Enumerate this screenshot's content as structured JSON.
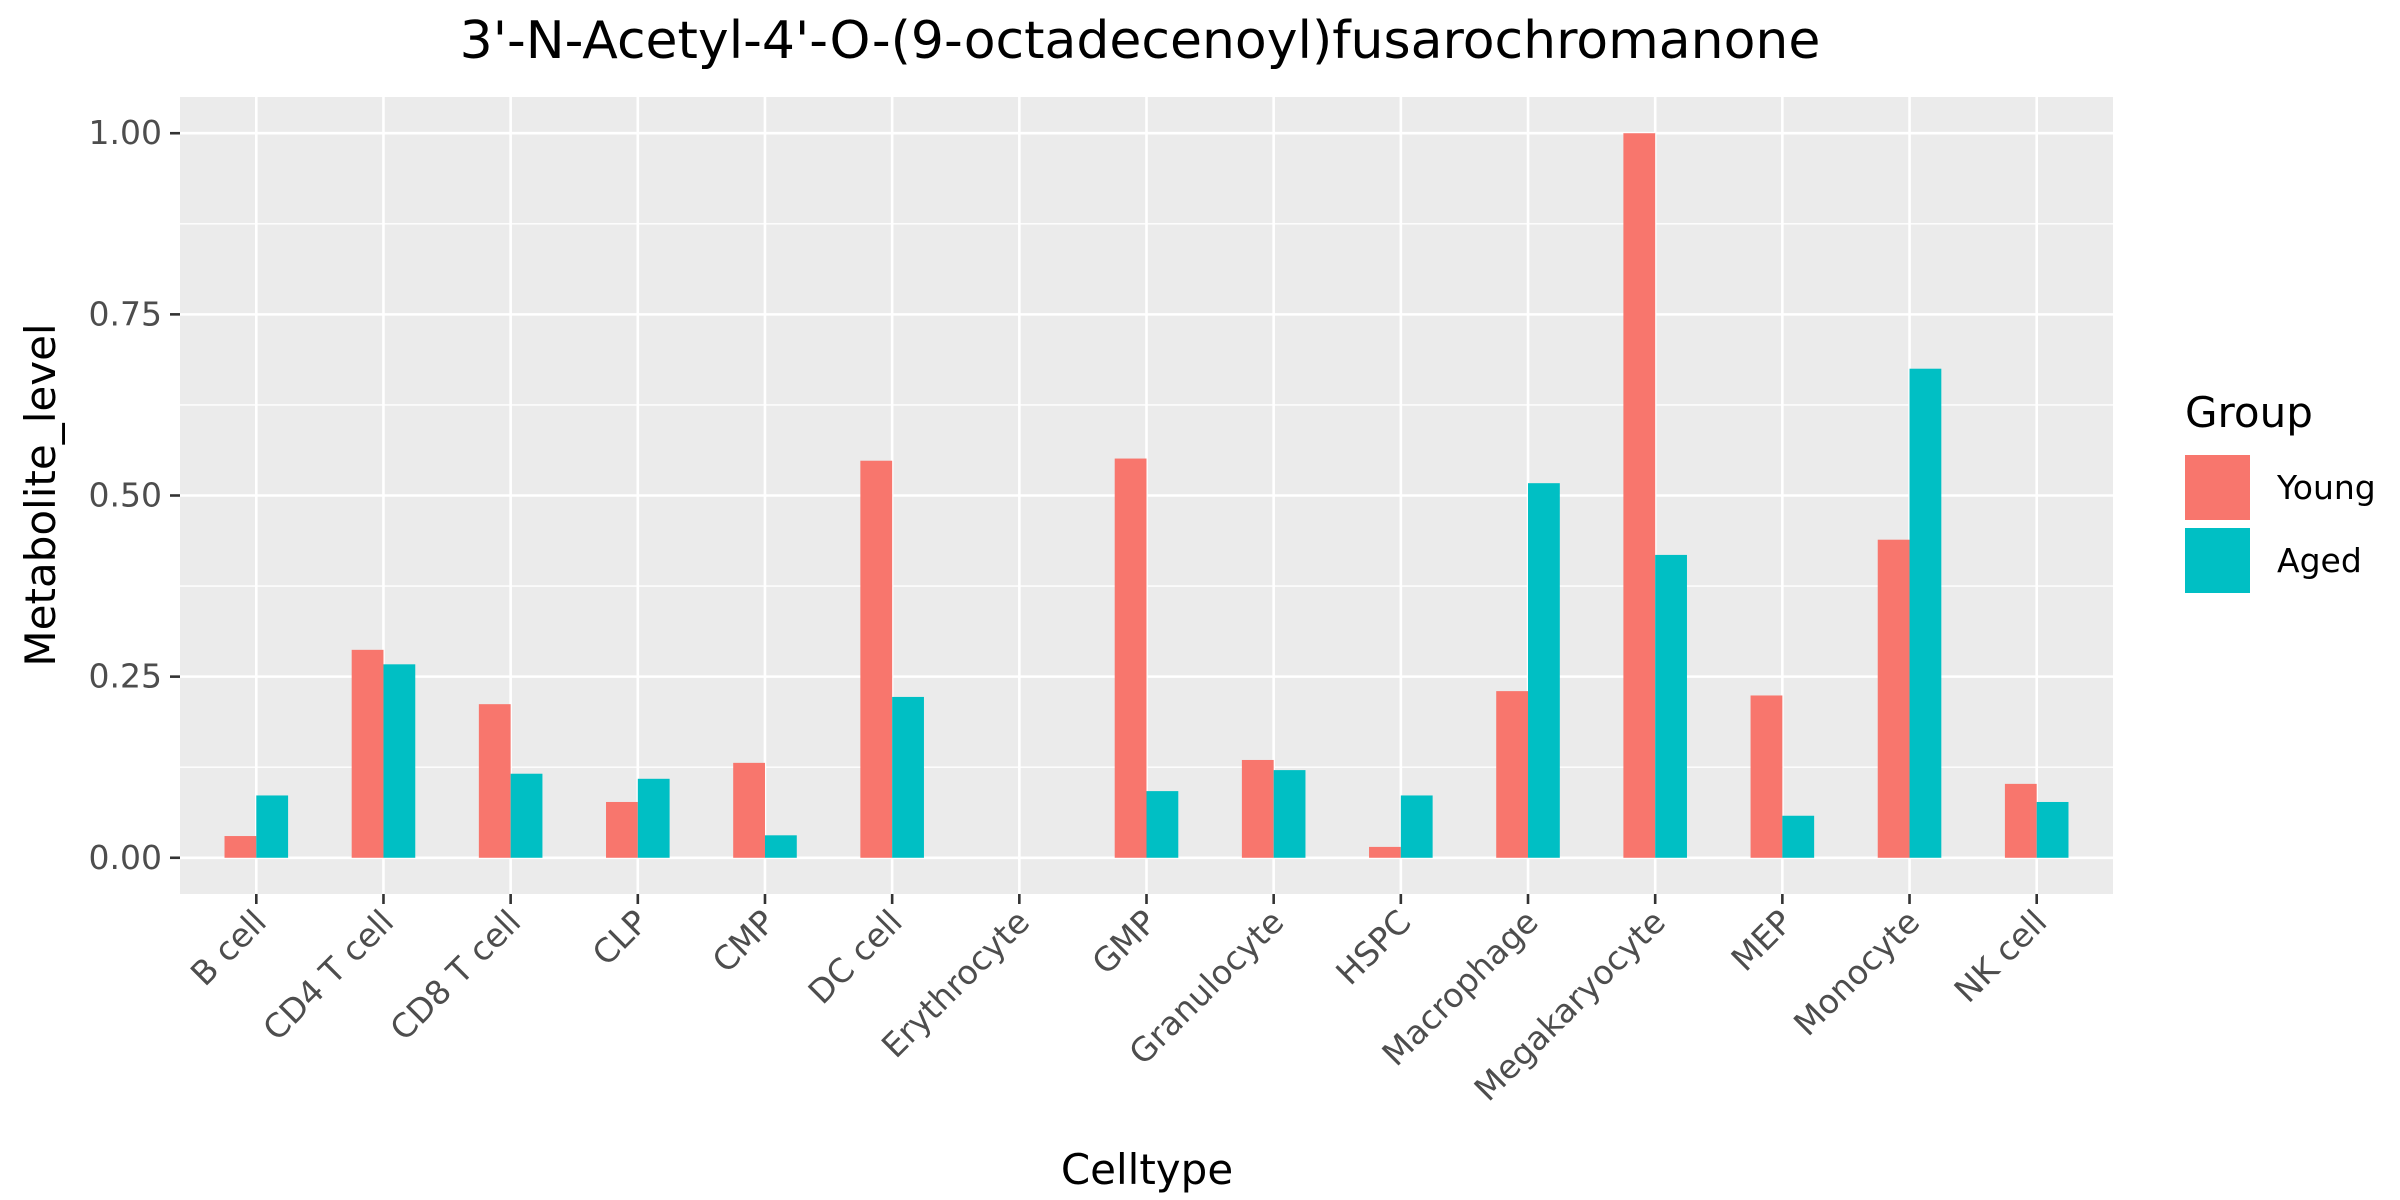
{
  "chart_data": {
    "type": "bar",
    "title": "3'-N-Acetyl-4'-O-(9-octadecenoyl)fusarochromanone",
    "xlabel": "Celltype",
    "ylabel": "Metabolite_level",
    "ylim": [
      -0.05,
      1.05
    ],
    "yticks": [
      "0.00",
      "0.25",
      "0.50",
      "0.75",
      "1.00"
    ],
    "ytick_values": [
      0,
      0.25,
      0.5,
      0.75,
      1.0
    ],
    "grid": true,
    "legend_position": "right",
    "legend_title": "Group",
    "categories": [
      "B cell",
      "CD4 T cell",
      "CD8 T cell",
      "CLP",
      "CMP",
      "DC cell",
      "Erythrocyte",
      "GMP",
      "Granulocyte",
      "HSPC",
      "Macrophage",
      "Megakaryocyte",
      "MEP",
      "Monocyte",
      "NK cell"
    ],
    "series": [
      {
        "name": "Young",
        "color": "#F8766D",
        "values": [
          0.03,
          0.287,
          0.212,
          0.077,
          0.131,
          0.548,
          0.0,
          0.551,
          0.135,
          0.015,
          0.23,
          1.0,
          0.224,
          0.439,
          0.102
        ]
      },
      {
        "name": "Aged",
        "color": "#00BFC4",
        "values": [
          0.086,
          0.267,
          0.116,
          0.109,
          0.031,
          0.222,
          0.0,
          0.092,
          0.121,
          0.086,
          0.517,
          0.418,
          0.058,
          0.675,
          0.077
        ]
      }
    ],
    "panel_background": "#EBEBEB",
    "grid_color": "#FFFFFF"
  }
}
